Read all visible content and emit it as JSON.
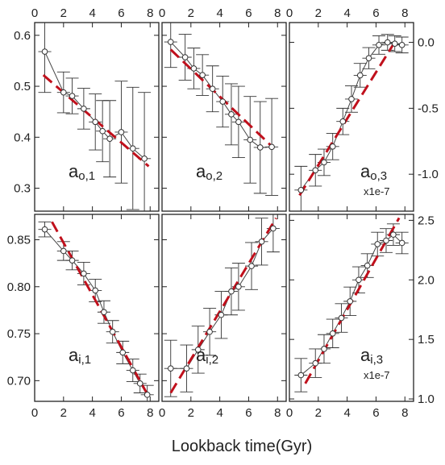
{
  "figure": {
    "xlabel": "Lookback time(Gyr)",
    "x_ticks": [
      0,
      2,
      4,
      6,
      8
    ],
    "xlim": [
      0,
      8.6
    ]
  },
  "chart_data": [
    {
      "type": "scatter",
      "panel": "a_o_1",
      "label_main": "a",
      "label_sub": "o,1",
      "scale_note": "",
      "ylim": [
        0.255,
        0.625
      ],
      "yticks": [
        0.3,
        0.4,
        0.5,
        0.6
      ],
      "x": [
        0.7,
        2.0,
        2.6,
        3.4,
        4.2,
        4.7,
        5.2,
        6.0,
        6.8,
        7.6
      ],
      "y": [
        0.568,
        0.488,
        0.481,
        0.456,
        0.43,
        0.412,
        0.397,
        0.41,
        0.378,
        0.358
      ],
      "yerr": [
        0.08,
        0.04,
        0.035,
        0.04,
        0.055,
        0.06,
        0.075,
        0.1,
        0.12,
        0.13
      ],
      "trend": {
        "x": [
          0.6,
          7.9
        ],
        "y": [
          0.522,
          0.343
        ]
      }
    },
    {
      "type": "scatter",
      "panel": "a_o_2",
      "label_main": "a",
      "label_sub": "o,2",
      "scale_note": "",
      "ylim": [
        0.255,
        0.625
      ],
      "yticks": [
        0.3,
        0.4,
        0.5,
        0.6
      ],
      "x": [
        0.6,
        1.6,
        2.2,
        2.8,
        3.5,
        4.2,
        4.8,
        5.3,
        6.1,
        6.8,
        7.6
      ],
      "y": [
        0.587,
        0.557,
        0.535,
        0.522,
        0.495,
        0.47,
        0.445,
        0.43,
        0.395,
        0.38,
        0.381
      ],
      "yerr": [
        0.05,
        0.045,
        0.04,
        0.04,
        0.045,
        0.05,
        0.06,
        0.07,
        0.085,
        0.09,
        0.095
      ],
      "trend": {
        "x": [
          0.6,
          7.5
        ],
        "y": [
          0.572,
          0.385
        ]
      }
    },
    {
      "type": "scatter",
      "panel": "a_o_3",
      "label_main": "a",
      "label_sub": "o,3",
      "scale_note": "x1e-7",
      "ylim": [
        -1.28,
        0.15
      ],
      "yticks": [
        0.0,
        -0.5,
        -1.0
      ],
      "x": [
        0.8,
        1.8,
        2.4,
        3.0,
        3.7,
        4.3,
        4.9,
        5.5,
        6.2,
        6.8,
        7.3,
        7.8
      ],
      "y": [
        -1.12,
        -0.97,
        -0.91,
        -0.79,
        -0.6,
        -0.43,
        -0.25,
        -0.12,
        -0.02,
        0.0,
        -0.01,
        -0.02
      ],
      "yerr": [
        0.18,
        0.12,
        0.1,
        0.1,
        0.1,
        0.1,
        0.09,
        0.08,
        0.07,
        0.06,
        0.06,
        0.06
      ],
      "trend": {
        "x": [
          0.7,
          7.4
        ],
        "y": [
          -1.16,
          0.02
        ]
      }
    },
    {
      "type": "scatter",
      "panel": "a_i_1",
      "label_main": "a",
      "label_sub": "i,1",
      "scale_note": "",
      "ylim": [
        0.678,
        0.877
      ],
      "yticks": [
        0.7,
        0.75,
        0.8,
        0.85
      ],
      "x": [
        0.7,
        2.0,
        2.6,
        3.4,
        4.2,
        4.8,
        5.4,
        6.1,
        6.8,
        7.3,
        7.8
      ],
      "y": [
        0.861,
        0.838,
        0.828,
        0.814,
        0.796,
        0.773,
        0.752,
        0.73,
        0.711,
        0.697,
        0.685
      ],
      "yerr": [
        0.008,
        0.01,
        0.01,
        0.012,
        0.012,
        0.012,
        0.012,
        0.012,
        0.012,
        0.01,
        0.01
      ],
      "trend": {
        "x": [
          1.2,
          7.9
        ],
        "y": [
          0.869,
          0.683
        ]
      }
    },
    {
      "type": "scatter",
      "panel": "a_i_2",
      "label_main": "a",
      "label_sub": "i,2",
      "scale_note": "",
      "ylim": [
        0.678,
        0.877
      ],
      "yticks": [
        0.7,
        0.75,
        0.8,
        0.85
      ],
      "x": [
        0.6,
        1.7,
        2.5,
        3.3,
        4.1,
        4.8,
        5.3,
        6.2,
        6.9,
        7.7
      ],
      "y": [
        0.713,
        0.713,
        0.733,
        0.752,
        0.77,
        0.795,
        0.8,
        0.822,
        0.848,
        0.862
      ],
      "yerr": [
        0.03,
        0.025,
        0.025,
        0.025,
        0.025,
        0.025,
        0.025,
        0.025,
        0.025,
        0.025
      ],
      "trend": {
        "x": [
          0.6,
          7.9
        ],
        "y": [
          0.687,
          0.873
        ]
      }
    },
    {
      "type": "scatter",
      "panel": "a_i_3",
      "label_main": "a",
      "label_sub": "i,3",
      "scale_note": "x1e-7",
      "ylim": [
        0.98,
        2.55
      ],
      "yticks": [
        1.0,
        1.5,
        2.0,
        2.5
      ],
      "x": [
        0.8,
        1.8,
        2.4,
        3.0,
        3.6,
        4.2,
        4.8,
        5.4,
        6.1,
        6.7,
        7.2,
        7.8
      ],
      "y": [
        1.2,
        1.3,
        1.42,
        1.55,
        1.68,
        1.82,
        2.0,
        2.12,
        2.3,
        2.33,
        2.38,
        2.31
      ],
      "yerr": [
        0.14,
        0.12,
        0.12,
        0.12,
        0.12,
        0.12,
        0.11,
        0.1,
        0.1,
        0.1,
        0.09,
        0.09
      ],
      "trend": {
        "x": [
          1.1,
          7.6
        ],
        "y": [
          1.13,
          2.52
        ]
      }
    }
  ]
}
